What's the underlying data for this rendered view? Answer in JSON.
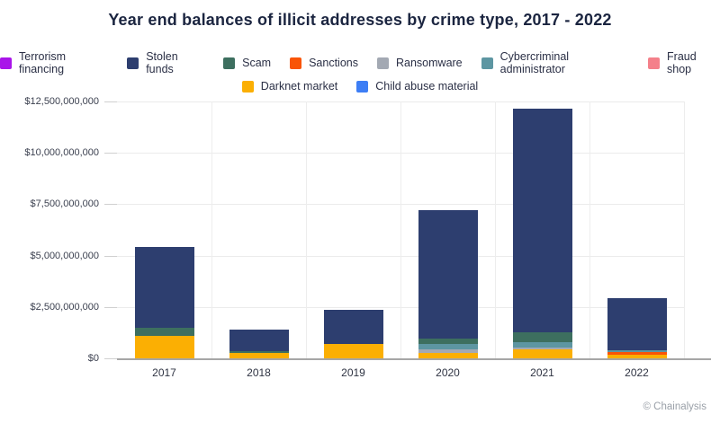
{
  "title": "Year end balances of illicit addresses by crime type, 2017 - 2022",
  "attribution": "© Chainalysis",
  "legend": {
    "rows": [
      [
        "Terrorism financing",
        "Stolen funds",
        "Scam",
        "Sanctions",
        "Ransomware",
        "Cybercriminal administrator",
        "Fraud shop"
      ],
      [
        "Darknet market",
        "Child abuse material"
      ]
    ]
  },
  "chart_data": {
    "type": "bar",
    "stacked": true,
    "title": "Year end balances of illicit addresses by crime type, 2017 - 2022",
    "xlabel": "",
    "ylabel": "",
    "grid": true,
    "legend_position": "top",
    "categories": [
      "2017",
      "2018",
      "2019",
      "2020",
      "2021",
      "2022"
    ],
    "ylim": [
      0,
      12500000000
    ],
    "yticks": [
      0,
      2500000000,
      5000000000,
      7500000000,
      10000000000,
      12500000000
    ],
    "ytick_labels": [
      "$0",
      "$2,500,000,000",
      "$5,000,000,000",
      "$7,500,000,000",
      "$10,000,000,000",
      "$12,500,000,000"
    ],
    "series": [
      {
        "name": "Terrorism financing",
        "color": "#a915e9",
        "values": [
          0,
          0,
          0,
          0,
          0,
          0
        ]
      },
      {
        "name": "Stolen funds",
        "color": "#2d3e6f",
        "values": [
          3930000000,
          1060000000,
          1660000000,
          6250000000,
          10870000000,
          2530000000
        ]
      },
      {
        "name": "Scam",
        "color": "#3d6f5f",
        "values": [
          390000000,
          90000000,
          0,
          260000000,
          480000000,
          0
        ]
      },
      {
        "name": "Sanctions",
        "color": "#f95407",
        "values": [
          0,
          0,
          0,
          0,
          0,
          130000000
        ]
      },
      {
        "name": "Ransomware",
        "color": "#a3a9b3",
        "values": [
          0,
          0,
          0,
          170000000,
          90000000,
          0
        ]
      },
      {
        "name": "Cybercriminal administrator",
        "color": "#5d96a2",
        "values": [
          0,
          0,
          0,
          260000000,
          260000000,
          90000000
        ]
      },
      {
        "name": "Fraud shop",
        "color": "#f4808a",
        "values": [
          0,
          0,
          0,
          0,
          0,
          0
        ]
      },
      {
        "name": "Darknet market",
        "color": "#fbaf03",
        "values": [
          1090000000,
          260000000,
          700000000,
          260000000,
          440000000,
          170000000
        ]
      },
      {
        "name": "Child abuse material",
        "color": "#3d7ef5",
        "values": [
          0,
          0,
          0,
          0,
          0,
          0
        ]
      }
    ],
    "stack_order_bottom_to_top": [
      "Darknet market",
      "Sanctions",
      "Ransomware",
      "Cybercriminal administrator",
      "Scam",
      "Stolen funds",
      "Fraud shop",
      "Child abuse material",
      "Terrorism financing"
    ],
    "totals": [
      5410000000,
      1410000000,
      2360000000,
      7200000000,
      12140000000,
      2920000000
    ]
  }
}
